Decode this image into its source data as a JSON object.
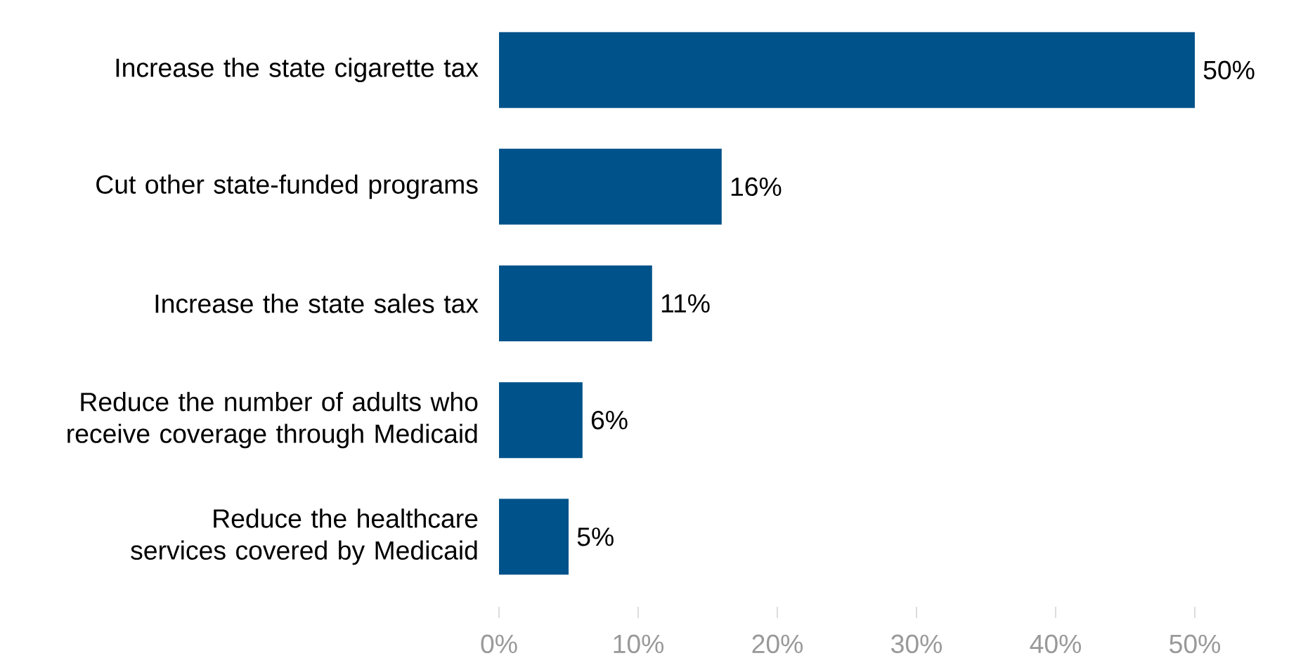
{
  "chart_data": {
    "type": "bar",
    "orientation": "horizontal",
    "categories": [
      "Increase the state cigarette tax",
      "Cut other state-funded programs",
      "Increase the state sales tax",
      "Reduce the number of adults who receive coverage through Medicaid",
      "Reduce the healthcare services covered by Medicaid"
    ],
    "values": [
      50,
      16,
      11,
      6,
      5
    ],
    "value_labels": [
      "50%",
      "16%",
      "11%",
      "6%",
      "5%"
    ],
    "color": "#00528a",
    "xlim": [
      0,
      50
    ],
    "xticks": [
      {
        "value": 0,
        "label": "0%"
      },
      {
        "value": 10,
        "label": "10%"
      },
      {
        "value": 20,
        "label": "20%"
      },
      {
        "value": 30,
        "label": "30%"
      },
      {
        "value": 40,
        "label": "40%"
      },
      {
        "value": 50,
        "label": "50%"
      }
    ],
    "grid": false
  }
}
